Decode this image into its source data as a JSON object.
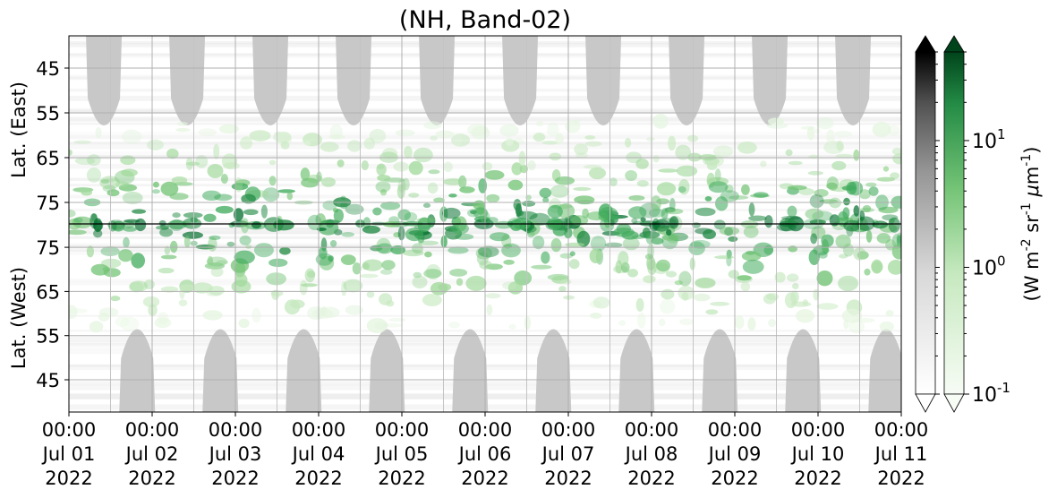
{
  "chart_data": {
    "type": "heatmap",
    "title": "(NH, Band-02)",
    "y_upper_label": "Lat. (East)",
    "y_lower_label": "Lat. (West)",
    "y_upper_ticks": [
      "45",
      "55",
      "65",
      "75"
    ],
    "y_lower_ticks": [
      "75",
      "65",
      "55",
      "45"
    ],
    "x_ticks": [
      [
        "00:00",
        "Jul 01",
        "2022"
      ],
      [
        "00:00",
        "Jul 02",
        "2022"
      ],
      [
        "00:00",
        "Jul 03",
        "2022"
      ],
      [
        "00:00",
        "Jul 04",
        "2022"
      ],
      [
        "00:00",
        "Jul 05",
        "2022"
      ],
      [
        "00:00",
        "Jul 06",
        "2022"
      ],
      [
        "00:00",
        "Jul 07",
        "2022"
      ],
      [
        "00:00",
        "Jul 08",
        "2022"
      ],
      [
        "00:00",
        "Jul 09",
        "2022"
      ],
      [
        "00:00",
        "Jul 10",
        "2022"
      ],
      [
        "00:00",
        "Jul 11",
        "2022"
      ]
    ],
    "x_range": [
      "2022-07-01 00:00",
      "2022-07-11 00:00"
    ],
    "grid": true,
    "colorbar_label": "(W m$^{-2}$ sr$^{-1}$ $\\mu$m$^{-1}$)",
    "colorbar_ticks": [
      "10^1",
      "10^0",
      "10^-1"
    ],
    "colorbar_scale": "log",
    "colorbar_range": [
      0.1,
      50
    ],
    "colormaps": [
      "Greys",
      "Greens"
    ],
    "colors": {
      "no_data": "#c8c8c8",
      "green_max": "#00441b",
      "grey_max": "#000000"
    }
  }
}
